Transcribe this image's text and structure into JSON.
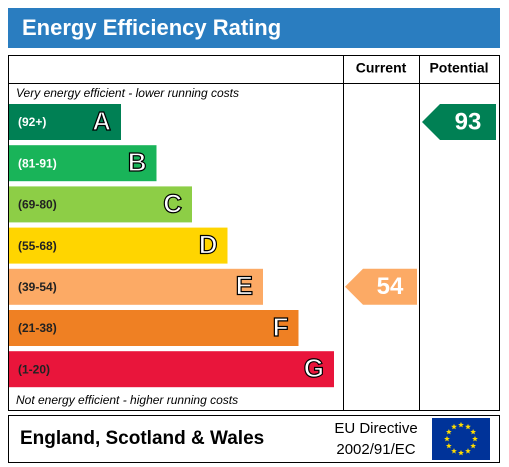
{
  "header": {
    "title": "Energy Efficiency Rating"
  },
  "columns": {
    "current": "Current",
    "potential": "Potential"
  },
  "top_note": "Very energy efficient - lower running costs",
  "bottom_note": "Not energy efficient - higher running costs",
  "bands": [
    {
      "range": "(92+)",
      "letter": "A",
      "color": "#008054"
    },
    {
      "range": "(81-91)",
      "letter": "B",
      "color": "#19b459"
    },
    {
      "range": "(69-80)",
      "letter": "C",
      "color": "#8dce46"
    },
    {
      "range": "(55-68)",
      "letter": "D",
      "color": "#ffd500"
    },
    {
      "range": "(39-54)",
      "letter": "E",
      "color": "#fcaa65"
    },
    {
      "range": "(21-38)",
      "letter": "F",
      "color": "#ef8023"
    },
    {
      "range": "(1-20)",
      "letter": "G",
      "color": "#e9153b"
    }
  ],
  "current": {
    "value": 54,
    "color": "#fcaa65"
  },
  "potential": {
    "value": 93,
    "color": "#008054"
  },
  "footer": {
    "region": "England, Scotland & Wales",
    "directive": [
      "EU Directive",
      "2002/91/EC"
    ]
  }
}
